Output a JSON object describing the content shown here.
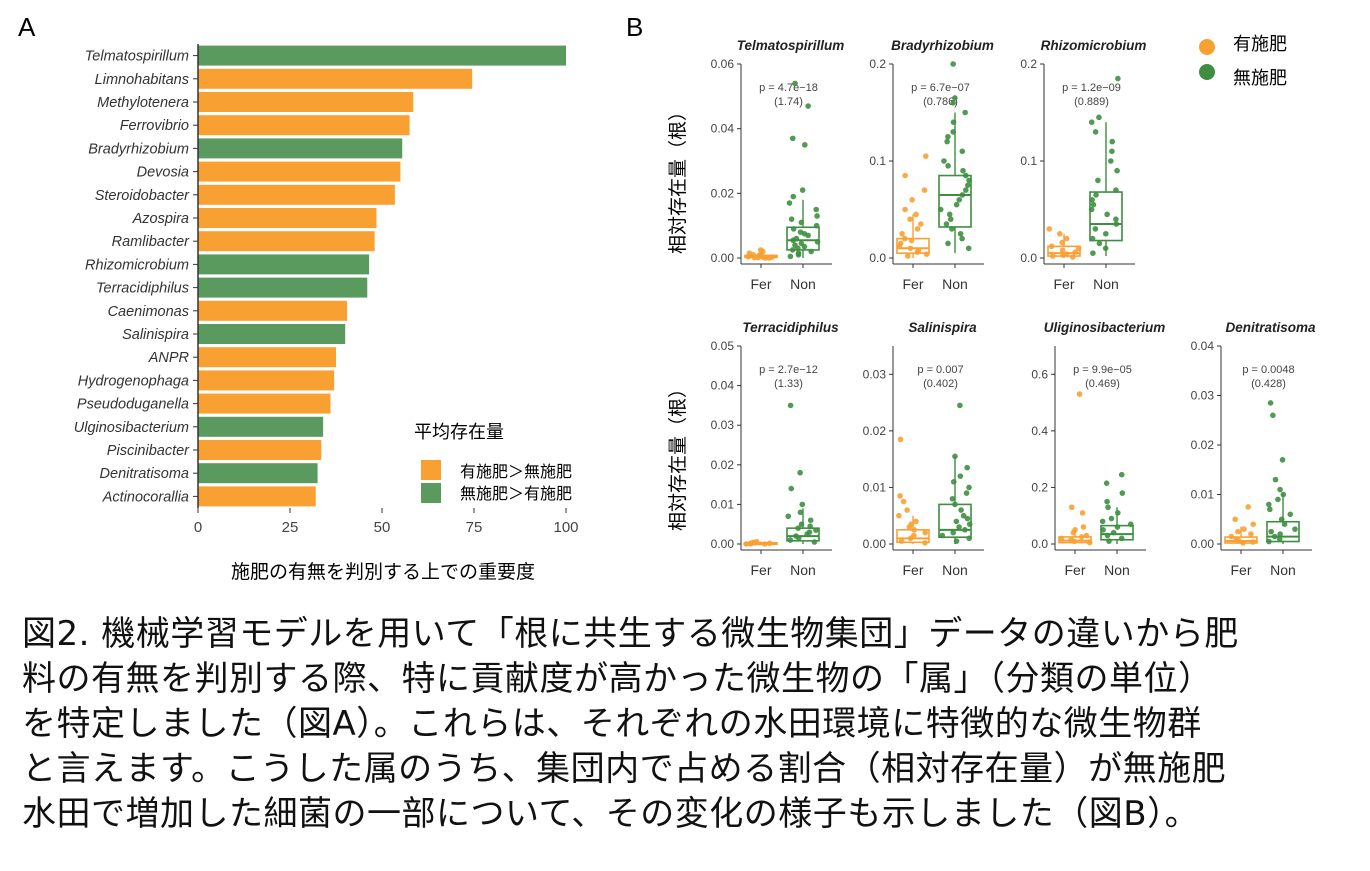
{
  "panel_a": {
    "label": "A",
    "xlabel": "施肥の有無を判別する上での重要度",
    "legend_title": "平均存在量",
    "legend": [
      {
        "key": "fer",
        "label": "有施肥＞無施肥",
        "color": "#F9A033"
      },
      {
        "key": "non",
        "label": "無施肥＞有施肥",
        "color": "#5A9A5E"
      }
    ]
  },
  "panel_b": {
    "label": "B",
    "ylabel": "相対存在量（根）",
    "legend": [
      {
        "key": "fer",
        "label": "有施肥",
        "color": "#F9A033"
      },
      {
        "key": "non",
        "label": "無施肥",
        "color": "#3E8E41"
      }
    ],
    "x_categories": [
      "Fer",
      "Non"
    ]
  },
  "chart_data": [
    {
      "type": "bar",
      "orientation": "horizontal",
      "xlim": [
        0,
        100
      ],
      "xticks": [
        0,
        25,
        50,
        75,
        100
      ],
      "categories": [
        "Telmatospirillum",
        "Limnohabitans",
        "Methylotenera",
        "Ferrovibrio",
        "Bradyrhizobium",
        "Devosia",
        "Steroidobacter",
        "Azospira",
        "Ramlibacter",
        "Rhizomicrobium",
        "Terracidiphilus",
        "Caenimonas",
        "Salinispira",
        "ANPR",
        "Hydrogenophaga",
        "Pseudoduganella",
        "Ulginosibacterium",
        "Piscinibacter",
        "Denitratisoma",
        "Actinocorallia"
      ],
      "values": [
        100,
        74.5,
        58.5,
        57.5,
        55.5,
        55,
        53.5,
        48.5,
        48,
        46.5,
        46,
        40.5,
        40,
        37.5,
        37,
        36,
        34,
        33.5,
        32.5,
        32
      ],
      "group": [
        "non",
        "fer",
        "fer",
        "fer",
        "non",
        "fer",
        "fer",
        "fer",
        "fer",
        "non",
        "non",
        "fer",
        "non",
        "fer",
        "fer",
        "fer",
        "non",
        "fer",
        "non",
        "fer"
      ]
    },
    {
      "type": "box",
      "title": "Telmatospirillum",
      "annotation": [
        "p = 4.7e−18",
        "(1.74)"
      ],
      "ylim": [
        0,
        0.06
      ],
      "yticks": [
        "0.00",
        "0.02",
        "0.04",
        "0.06"
      ],
      "ytick_values": [
        0,
        0.02,
        0.04,
        0.06
      ],
      "fer": {
        "min": 0,
        "q1": 0.0002,
        "median": 0.0004,
        "q3": 0.0008,
        "max": 0.0015,
        "points": [
          0.0025,
          0.002,
          0.0015,
          0.001,
          0.0008,
          0.0006,
          0.0004,
          0.0003,
          0.0002,
          0.0001,
          0.0001,
          0,
          0,
          0.0005,
          0.0012
        ]
      },
      "non": {
        "min": 0,
        "q1": 0.0025,
        "median": 0.0055,
        "q3": 0.0095,
        "max": 0.018,
        "points": [
          0.054,
          0.047,
          0.037,
          0.035,
          0.021,
          0.019,
          0.017,
          0.015,
          0.013,
          0.012,
          0.011,
          0.01,
          0.009,
          0.008,
          0.0075,
          0.007,
          0.006,
          0.0055,
          0.005,
          0.0045,
          0.004,
          0.0035,
          0.003,
          0.0025,
          0.002,
          0.0015,
          0.001,
          0.0005
        ]
      }
    },
    {
      "type": "box",
      "title": "Bradyrhizobium",
      "annotation": [
        "p = 6.7e−07",
        "(0.786)"
      ],
      "ylim": [
        0,
        0.2
      ],
      "yticks": [
        "0.0",
        "0.1",
        "0.2"
      ],
      "ytick_values": [
        0,
        0.1,
        0.2
      ],
      "fer": {
        "min": 0,
        "q1": 0.005,
        "median": 0.01,
        "q3": 0.02,
        "max": 0.045,
        "points": [
          0.105,
          0.085,
          0.07,
          0.06,
          0.05,
          0.045,
          0.04,
          0.035,
          0.03,
          0.025,
          0.02,
          0.018,
          0.015,
          0.012,
          0.01,
          0.008,
          0.006,
          0.004,
          0.002
        ]
      },
      "non": {
        "min": 0.005,
        "q1": 0.032,
        "median": 0.065,
        "q3": 0.085,
        "max": 0.15,
        "points": [
          0.2,
          0.165,
          0.16,
          0.15,
          0.14,
          0.13,
          0.125,
          0.12,
          0.11,
          0.1,
          0.095,
          0.09,
          0.085,
          0.08,
          0.075,
          0.07,
          0.065,
          0.06,
          0.055,
          0.05,
          0.045,
          0.04,
          0.035,
          0.03,
          0.025,
          0.02,
          0.015,
          0.01
        ]
      }
    },
    {
      "type": "box",
      "title": "Rhizomicrobium",
      "annotation": [
        "p = 1.2e−09",
        "(0.889)"
      ],
      "ylim": [
        0,
        0.2
      ],
      "yticks": [
        "0.0",
        "0.1",
        "0.2"
      ],
      "ytick_values": [
        0,
        0.1,
        0.2
      ],
      "fer": {
        "min": 0,
        "q1": 0.002,
        "median": 0.005,
        "q3": 0.012,
        "max": 0.025,
        "points": [
          0.03,
          0.025,
          0.02,
          0.016,
          0.012,
          0.01,
          0.008,
          0.006,
          0.004,
          0.003,
          0.002,
          0.001
        ]
      },
      "non": {
        "min": 0.002,
        "q1": 0.018,
        "median": 0.035,
        "q3": 0.068,
        "max": 0.14,
        "points": [
          0.185,
          0.145,
          0.14,
          0.13,
          0.12,
          0.11,
          0.1,
          0.09,
          0.08,
          0.07,
          0.065,
          0.06,
          0.055,
          0.05,
          0.045,
          0.04,
          0.035,
          0.03,
          0.025,
          0.02,
          0.015,
          0.01,
          0.005
        ]
      }
    },
    {
      "type": "box",
      "title": "Terracidiphilus",
      "annotation": [
        "p = 2.7e−12",
        "(1.33)"
      ],
      "ylim": [
        0,
        0.05
      ],
      "yticks": [
        "0.00",
        "0.01",
        "0.02",
        "0.03",
        "0.04",
        "0.05"
      ],
      "ytick_values": [
        0,
        0.01,
        0.02,
        0.03,
        0.04,
        0.05
      ],
      "fer": {
        "min": 0,
        "q1": 0,
        "median": 0.0001,
        "q3": 0.0003,
        "max": 0.0006,
        "points": [
          0.0006,
          0.0004,
          0.0003,
          0.0002,
          0.0001,
          0.0001,
          0,
          0
        ]
      },
      "non": {
        "min": 0,
        "q1": 0.0008,
        "median": 0.002,
        "q3": 0.004,
        "max": 0.009,
        "points": [
          0.035,
          0.018,
          0.014,
          0.01,
          0.008,
          0.007,
          0.006,
          0.005,
          0.0045,
          0.004,
          0.0035,
          0.003,
          0.0025,
          0.002,
          0.0015,
          0.001,
          0.0005
        ]
      }
    },
    {
      "type": "box",
      "title": "Salinispira",
      "annotation": [
        "p = 0.007",
        "(0.402)"
      ],
      "ylim": [
        0,
        0.035
      ],
      "yticks": [
        "0.00",
        "0.01",
        "0.02",
        "0.03"
      ],
      "ytick_values": [
        0,
        0.01,
        0.02,
        0.03
      ],
      "fer": {
        "min": 0,
        "q1": 0.0003,
        "median": 0.001,
        "q3": 0.0025,
        "max": 0.005,
        "points": [
          0.0185,
          0.0085,
          0.0075,
          0.006,
          0.005,
          0.004,
          0.0035,
          0.003,
          0.0025,
          0.002,
          0.0015,
          0.001,
          0.0005,
          0.0002
        ]
      },
      "non": {
        "min": 0,
        "q1": 0.0012,
        "median": 0.0025,
        "q3": 0.007,
        "max": 0.0155,
        "points": [
          0.0245,
          0.0155,
          0.0135,
          0.012,
          0.011,
          0.01,
          0.009,
          0.008,
          0.007,
          0.006,
          0.005,
          0.0045,
          0.004,
          0.0035,
          0.003,
          0.0025,
          0.002,
          0.0015,
          0.001,
          0.0005
        ]
      }
    },
    {
      "type": "box",
      "title": "Uliginosibacterium",
      "annotation": [
        "p = 9.9e−05",
        "(0.469)"
      ],
      "ylim": [
        0,
        0.7
      ],
      "yticks": [
        "0.0",
        "0.2",
        "0.4",
        "0.6"
      ],
      "ytick_values": [
        0,
        0.2,
        0.4,
        0.6
      ],
      "fer": {
        "min": 0,
        "q1": 0.005,
        "median": 0.012,
        "q3": 0.025,
        "max": 0.05,
        "points": [
          0.53,
          0.13,
          0.11,
          0.06,
          0.05,
          0.04,
          0.03,
          0.025,
          0.02,
          0.015,
          0.01,
          0.005
        ]
      },
      "non": {
        "min": 0,
        "q1": 0.015,
        "median": 0.035,
        "q3": 0.065,
        "max": 0.13,
        "points": [
          0.245,
          0.215,
          0.18,
          0.15,
          0.13,
          0.11,
          0.09,
          0.08,
          0.07,
          0.06,
          0.05,
          0.04,
          0.03,
          0.02,
          0.01
        ]
      }
    },
    {
      "type": "box",
      "title": "Denitratisoma",
      "annotation": [
        "p = 0.0048",
        "(0.428)"
      ],
      "ylim": [
        0,
        0.04
      ],
      "yticks": [
        "0.00",
        "0.01",
        "0.02",
        "0.03",
        "0.04"
      ],
      "ytick_values": [
        0,
        0.01,
        0.02,
        0.03,
        0.04
      ],
      "fer": {
        "min": 0,
        "q1": 0.0002,
        "median": 0.0006,
        "q3": 0.0014,
        "max": 0.0035,
        "points": [
          0.0075,
          0.005,
          0.004,
          0.003,
          0.0025,
          0.002,
          0.0015,
          0.001,
          0.0007,
          0.0004,
          0.0002
        ]
      },
      "non": {
        "min": 0,
        "q1": 0.0005,
        "median": 0.0015,
        "q3": 0.0045,
        "max": 0.01,
        "points": [
          0.0285,
          0.026,
          0.017,
          0.013,
          0.011,
          0.01,
          0.009,
          0.008,
          0.007,
          0.006,
          0.005,
          0.004,
          0.003,
          0.0025,
          0.002,
          0.0015,
          0.001,
          0.0005
        ]
      }
    }
  ],
  "caption": "図2. 機械学習モデルを用いて「根に共生する微生物集団」データの違いから肥\n料の有無を判別する際、特に貢献度が高かった微生物の「属」（分類の単位）\nを特定しました（図A）。これらは、それぞれの水田環境に特徴的な微生物群\nと言えます。こうした属のうち、集団内で占める割合（相対存在量）が無施肥\n水田で増加した細菌の一部について、その変化の様子も示しました（図B）。"
}
